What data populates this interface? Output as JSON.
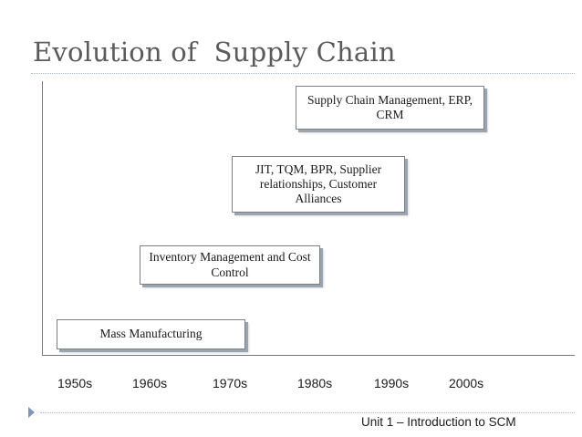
{
  "slide": {
    "title": "Evolution of  Supply Chain",
    "stages": [
      {
        "label": "Mass Manufacturing"
      },
      {
        "label": "Inventory Management and Cost Control"
      },
      {
        "label": "JIT, TQM, BPR, Supplier relationships, Customer Alliances"
      },
      {
        "label": "Supply Chain Management, ERP, CRM"
      }
    ],
    "timeline": [
      "1950s",
      "1960s",
      "1970s",
      "1980s",
      "1990s",
      "2000s"
    ],
    "footer": "Unit 1 – Introduction to SCM"
  },
  "colors": {
    "title": "#5b5b5b",
    "rule": "#a7b6c9",
    "bullet": "#7f97b5",
    "box_shadow": "#9aa5b1"
  },
  "icons": {
    "footer_bullet": "triangle-right-icon"
  }
}
